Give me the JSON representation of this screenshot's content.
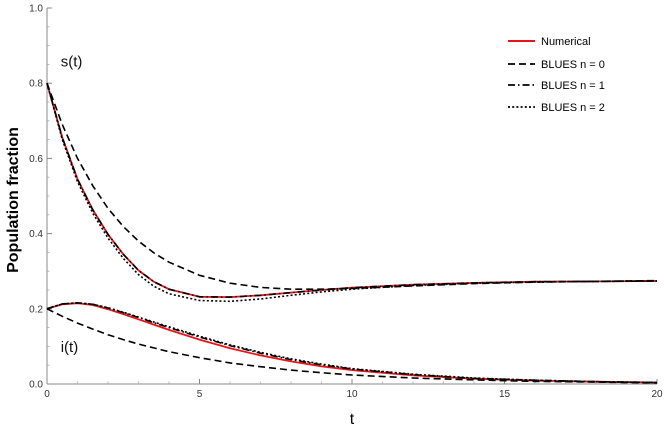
{
  "chart_data": {
    "type": "line",
    "title": "",
    "xlabel": "t",
    "ylabel": "Population fraction",
    "xlim": [
      0,
      20
    ],
    "ylim": [
      0,
      1.0
    ],
    "x_ticks": [
      0,
      5,
      10,
      15,
      20
    ],
    "y_ticks": [
      0.0,
      0.2,
      0.4,
      0.6,
      0.8,
      1.0
    ],
    "x_tick_labels": [
      "0",
      "5",
      "10",
      "15",
      "20"
    ],
    "y_tick_labels": [
      "0.0",
      "0.2",
      "0.4",
      "0.6",
      "0.8",
      "1.0"
    ],
    "grid": false,
    "legend_position": "top-right",
    "annotations": [
      {
        "text": "s(t)",
        "x": 0.45,
        "y": 0.845
      },
      {
        "text": "i(t)",
        "x": 0.45,
        "y": 0.085
      }
    ],
    "x": [
      0,
      0.5,
      1,
      1.5,
      2,
      2.5,
      3,
      3.5,
      4,
      5,
      6,
      7,
      8,
      9,
      10,
      12,
      14,
      16,
      18,
      20
    ],
    "series": [
      {
        "name": "Numerical",
        "style": "solid",
        "color": "#e8141a",
        "groups": [
          {
            "curve": "s",
            "values": [
              0.8,
              0.655,
              0.545,
              0.463,
              0.398,
              0.345,
              0.302,
              0.272,
              0.252,
              0.232,
              0.231,
              0.236,
              0.243,
              0.25,
              0.256,
              0.264,
              0.269,
              0.272,
              0.273,
              0.274
            ]
          },
          {
            "curve": "i",
            "values": [
              0.2,
              0.212,
              0.215,
              0.21,
              0.199,
              0.186,
              0.172,
              0.158,
              0.144,
              0.118,
              0.095,
              0.076,
              0.06,
              0.047,
              0.037,
              0.023,
              0.014,
              0.009,
              0.006,
              0.004
            ]
          }
        ]
      },
      {
        "name": "BLUES n = 0",
        "style": "dashed",
        "color": "#000000",
        "groups": [
          {
            "curve": "s",
            "values": [
              0.8,
              0.69,
              0.6,
              0.527,
              0.467,
              0.419,
              0.38,
              0.349,
              0.324,
              0.289,
              0.268,
              0.257,
              0.252,
              0.252,
              0.254,
              0.261,
              0.267,
              0.271,
              0.273,
              0.275
            ]
          },
          {
            "curve": "i",
            "values": [
              0.2,
              0.18,
              0.162,
              0.146,
              0.131,
              0.118,
              0.106,
              0.096,
              0.086,
              0.07,
              0.056,
              0.046,
              0.037,
              0.03,
              0.024,
              0.016,
              0.011,
              0.007,
              0.005,
              0.003
            ]
          }
        ]
      },
      {
        "name": "BLUES n = 1",
        "style": "dashdot",
        "color": "#000000",
        "groups": [
          {
            "curve": "s",
            "values": [
              0.8,
              0.655,
              0.545,
              0.463,
              0.398,
              0.345,
              0.302,
              0.272,
              0.252,
              0.232,
              0.231,
              0.236,
              0.243,
              0.25,
              0.256,
              0.264,
              0.269,
              0.272,
              0.273,
              0.274
            ]
          },
          {
            "curve": "i",
            "values": [
              0.2,
              0.213,
              0.216,
              0.212,
              0.202,
              0.19,
              0.177,
              0.163,
              0.15,
              0.125,
              0.102,
              0.082,
              0.065,
              0.051,
              0.04,
              0.025,
              0.015,
              0.01,
              0.006,
              0.004
            ]
          }
        ]
      },
      {
        "name": "BLUES n = 2",
        "style": "dotted",
        "color": "#000000",
        "groups": [
          {
            "curve": "s",
            "values": [
              0.8,
              0.65,
              0.538,
              0.454,
              0.388,
              0.334,
              0.291,
              0.26,
              0.24,
              0.222,
              0.22,
              0.226,
              0.236,
              0.245,
              0.252,
              0.262,
              0.268,
              0.271,
              0.273,
              0.274
            ]
          },
          {
            "curve": "i",
            "values": [
              0.2,
              0.213,
              0.216,
              0.212,
              0.203,
              0.191,
              0.178,
              0.165,
              0.152,
              0.127,
              0.104,
              0.084,
              0.067,
              0.053,
              0.041,
              0.026,
              0.016,
              0.01,
              0.006,
              0.004
            ]
          }
        ]
      }
    ]
  }
}
